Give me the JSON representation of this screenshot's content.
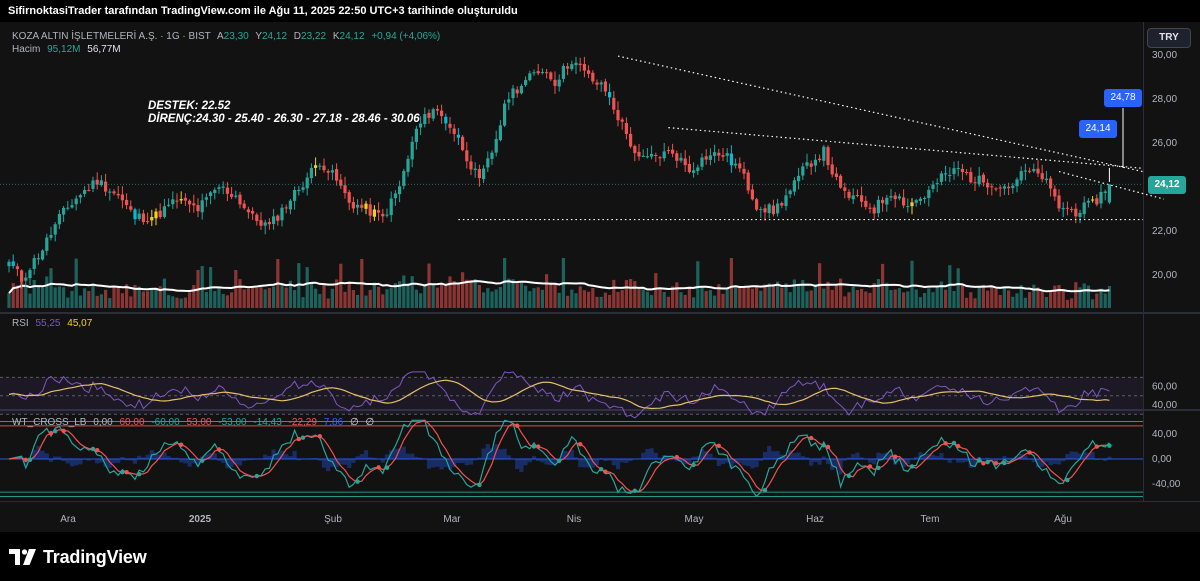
{
  "header": {
    "caption": "SifirnoktasiTrader tarafından TradingView.com ile Ağu 11, 2025 22:50 UTC+3 tarihinde oluşturuldu"
  },
  "legend": {
    "symbol": "KOZA ALTIN İŞLETMELERİ A.Ş. · 1G · BIST",
    "open_label": "A",
    "open": "23,30",
    "high_label": "Y",
    "high": "24,12",
    "low_label": "D",
    "low": "23,22",
    "close_label": "K",
    "close": "24,12",
    "change": "+0,94 (+4,06%)",
    "volume_label": "Hacim",
    "volume": "95,12M",
    "volume_ma": "56,77M"
  },
  "currency": "TRY",
  "annotation": {
    "support": "DESTEK: 22.52",
    "resistance": "DİRENÇ:24.30 - 25.40 - 26.30 - 27.18 - 28.46 - 30.06"
  },
  "rsi_legend": {
    "label": "RSI",
    "value": "55,25",
    "ma": "45,07"
  },
  "wt_legend": {
    "label": "WT_CROSS_LB",
    "v1": "0,00",
    "v2": "60,00",
    "v3": "-60,00",
    "v4": "53,00",
    "v5": "-53,00",
    "v6": "-14,43",
    "v7": "-22,29",
    "v8": "7,86",
    "v9": "∅",
    "v10": "∅"
  },
  "price_tags": {
    "current": "24,14",
    "target": "24,78",
    "last": "24,12"
  },
  "footer": {
    "brand": "TradingView"
  },
  "colors": {
    "up": "#26a69a",
    "down": "#ef5350",
    "highlight_up": "#f5d020",
    "highlight_alt": "#00bcd4",
    "highlight_down": "#ff1744",
    "rsi": "#7e57c2",
    "rsi_ma": "#e6c068",
    "tag_blue": "#2962ff"
  },
  "chart_data": [
    {
      "type": "candlestick",
      "title": "KOZA ALTIN İŞLETMELERİ A.Ş. · 1G · BIST",
      "x_ticks": [
        "Ara",
        "2025",
        "Şub",
        "Mar",
        "Nis",
        "May",
        "Haz",
        "Tem",
        "Ağu"
      ],
      "y_ticks": [
        "30,00",
        "28,00",
        "26,00",
        "24,00",
        "22,00",
        "20,00"
      ],
      "ylim": [
        19.2,
        30.3
      ],
      "keypoints_close": [
        [
          0,
          20.6
        ],
        [
          3,
          19.8
        ],
        [
          8,
          21.2
        ],
        [
          12,
          22.6
        ],
        [
          16,
          23.5
        ],
        [
          21,
          24.3
        ],
        [
          26,
          23.6
        ],
        [
          30,
          22.6
        ],
        [
          35,
          22.7
        ],
        [
          40,
          23.4
        ],
        [
          45,
          23.0
        ],
        [
          50,
          24.0
        ],
        [
          54,
          23.6
        ],
        [
          58,
          22.6
        ],
        [
          62,
          22.2
        ],
        [
          66,
          23.2
        ],
        [
          70,
          24.2
        ],
        [
          74,
          25.2
        ],
        [
          78,
          24.3
        ],
        [
          81,
          23.3
        ],
        [
          85,
          23.0
        ],
        [
          89,
          22.6
        ],
        [
          93,
          24.0
        ],
        [
          97,
          26.6
        ],
        [
          101,
          27.6
        ],
        [
          105,
          26.8
        ],
        [
          108,
          25.8
        ],
        [
          112,
          24.2
        ],
        [
          115,
          25.6
        ],
        [
          119,
          28.2
        ],
        [
          123,
          28.8
        ],
        [
          127,
          29.4
        ],
        [
          130,
          28.8
        ],
        [
          134,
          29.8
        ],
        [
          138,
          29.0
        ],
        [
          142,
          28.4
        ],
        [
          146,
          26.8
        ],
        [
          150,
          25.2
        ],
        [
          154,
          25.4
        ],
        [
          158,
          25.6
        ],
        [
          162,
          24.8
        ],
        [
          166,
          25.4
        ],
        [
          170,
          25.5
        ],
        [
          174,
          24.8
        ],
        [
          178,
          23.2
        ],
        [
          182,
          22.9
        ],
        [
          186,
          23.8
        ],
        [
          190,
          25.0
        ],
        [
          194,
          25.6
        ],
        [
          198,
          23.8
        ],
        [
          202,
          23.4
        ],
        [
          206,
          23.0
        ],
        [
          210,
          23.8
        ],
        [
          214,
          23.2
        ],
        [
          218,
          23.6
        ],
        [
          222,
          24.4
        ],
        [
          226,
          24.8
        ],
        [
          230,
          24.3
        ],
        [
          234,
          24.2
        ],
        [
          238,
          24.0
        ],
        [
          242,
          24.7
        ],
        [
          246,
          24.5
        ],
        [
          250,
          23.1
        ],
        [
          254,
          22.9
        ],
        [
          258,
          23.2
        ],
        [
          262,
          24.12
        ]
      ],
      "overlays": {
        "resistance_line_1": [
          [
            145,
            29.95
          ],
          [
            270,
            24.7
          ]
        ],
        "resistance_line_2": [
          [
            157,
            26.7
          ],
          [
            270,
            24.85
          ]
        ],
        "resistance_line_3": [
          [
            250,
            24.7
          ],
          [
            275,
            23.45
          ]
        ],
        "support_line": [
          [
            107,
            22.52
          ],
          [
            270,
            22.52
          ]
        ]
      },
      "last_price": 24.12,
      "price_labels": [
        24.14,
        24.78
      ]
    },
    {
      "type": "line",
      "title": "RSI",
      "y_ticks": [
        "60,00",
        "40,00"
      ],
      "ylim": [
        20,
        80
      ],
      "levels": [
        70,
        50,
        30
      ],
      "series": [
        {
          "name": "RSI",
          "last": "55,25"
        },
        {
          "name": "MA",
          "last": "45,07"
        }
      ]
    },
    {
      "type": "line",
      "title": "WT_CROSS_LB",
      "y_ticks": [
        "40,00",
        "0,00",
        "-40,00"
      ],
      "ylim": [
        -65,
        65
      ],
      "levels": [
        60,
        53,
        0,
        -53,
        -60
      ]
    }
  ]
}
